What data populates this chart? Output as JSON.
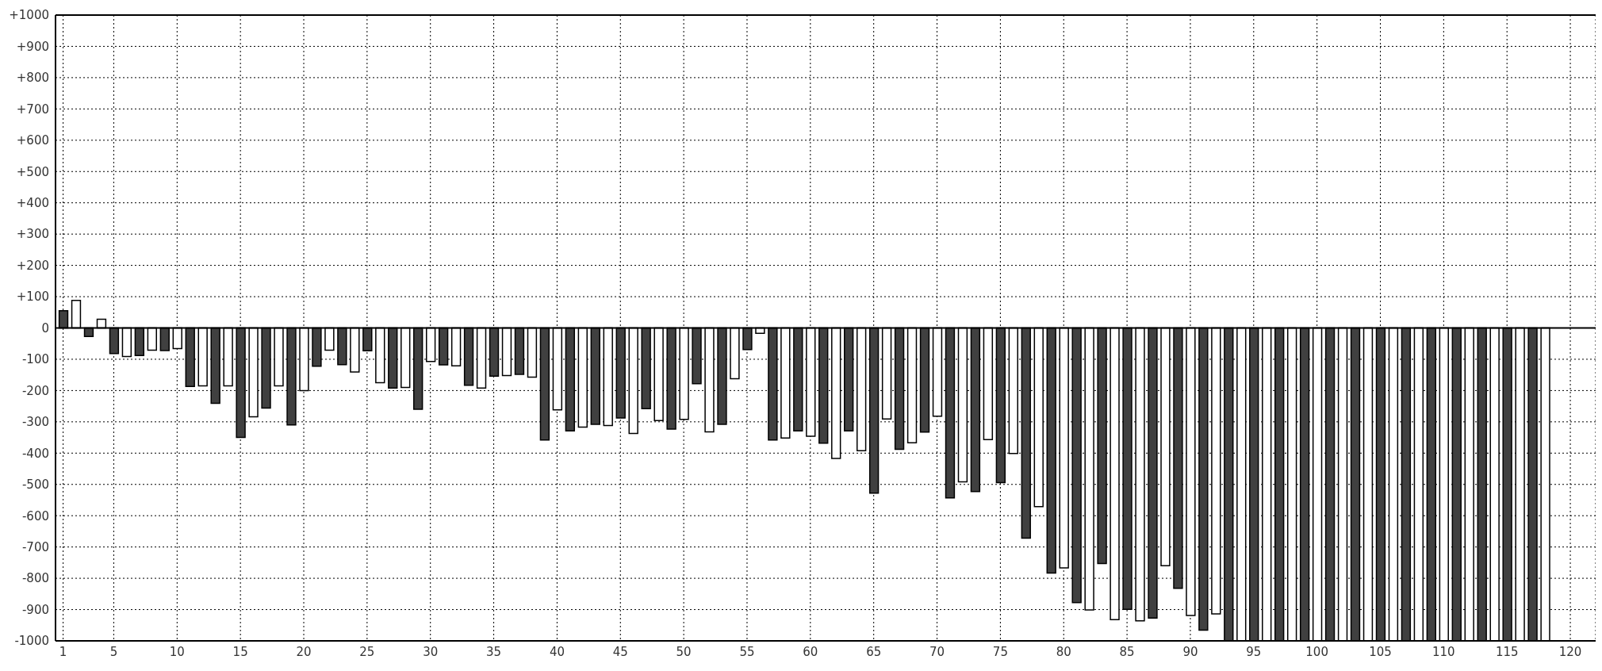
{
  "chart_data": {
    "type": "bar",
    "x": [
      1,
      2,
      3,
      4,
      5,
      6,
      7,
      8,
      9,
      10,
      11,
      12,
      13,
      14,
      15,
      16,
      17,
      18,
      19,
      20,
      21,
      22,
      23,
      24,
      25,
      26,
      27,
      28,
      29,
      30,
      31,
      32,
      33,
      34,
      35,
      36,
      37,
      38,
      39,
      40,
      41,
      42,
      43,
      44,
      45,
      46,
      47,
      48,
      49,
      50,
      51,
      52,
      53,
      54,
      55,
      56,
      57,
      58,
      59,
      60,
      61,
      62,
      63,
      64,
      65,
      66,
      67,
      68,
      69,
      70,
      71,
      72,
      73,
      74,
      75,
      76,
      77,
      78,
      79,
      80,
      81,
      82,
      83,
      84,
      85,
      86,
      87,
      88,
      89,
      90,
      91,
      92,
      93,
      94,
      95,
      96,
      97,
      98,
      99,
      100,
      101,
      102,
      103,
      104,
      105,
      106,
      107,
      108,
      109,
      110,
      111,
      112,
      113,
      114,
      115,
      116,
      117,
      118
    ],
    "values": [
      55,
      88,
      -27,
      28,
      -82,
      -91,
      -88,
      -71,
      -72,
      -66,
      -187,
      -185,
      -241,
      -185,
      -350,
      -284,
      -256,
      -185,
      -310,
      -200,
      -122,
      -71,
      -117,
      -141,
      -73,
      -175,
      -192,
      -190,
      -260,
      -107,
      -118,
      -121,
      -183,
      -192,
      -154,
      -152,
      -148,
      -157,
      -358,
      -262,
      -329,
      -317,
      -308,
      -312,
      -288,
      -337,
      -258,
      -296,
      -323,
      -292,
      -178,
      -332,
      -308,
      -162,
      -69,
      -17,
      -358,
      -352,
      -329,
      -346,
      -368,
      -417,
      -329,
      -392,
      -528,
      -291,
      -388,
      -367,
      -333,
      -282,
      -543,
      -492,
      -523,
      -357,
      -494,
      -401,
      -672,
      -571,
      -783,
      -767,
      -878,
      -901,
      -753,
      -932,
      -899,
      -936,
      -927,
      -760,
      -832,
      -919,
      -966,
      -914,
      -1000,
      -1000,
      -1000,
      -1000,
      -1000,
      -1000,
      -1000,
      -1000,
      -1000,
      -1000,
      -1000,
      -1000,
      -1000,
      -1000,
      -1000,
      -1000,
      -1000,
      -1000,
      -1000,
      -1000,
      -1000,
      -1000,
      -1000,
      -1000,
      -1000,
      -1000
    ],
    "colors": [
      "#404040",
      "#ffffff",
      "#404040",
      "#ffffff",
      "#404040",
      "#ffffff",
      "#404040",
      "#ffffff",
      "#404040",
      "#ffffff",
      "#404040",
      "#ffffff",
      "#404040",
      "#ffffff",
      "#404040",
      "#ffffff",
      "#404040",
      "#ffffff",
      "#404040",
      "#ffffff",
      "#404040",
      "#ffffff",
      "#404040",
      "#ffffff",
      "#404040",
      "#ffffff",
      "#404040",
      "#ffffff",
      "#404040",
      "#ffffff",
      "#404040",
      "#ffffff",
      "#404040",
      "#ffffff",
      "#404040",
      "#ffffff",
      "#404040",
      "#ffffff",
      "#404040",
      "#ffffff",
      "#404040",
      "#ffffff",
      "#404040",
      "#ffffff",
      "#404040",
      "#ffffff",
      "#404040",
      "#ffffff",
      "#404040",
      "#ffffff",
      "#404040",
      "#ffffff",
      "#404040",
      "#ffffff",
      "#404040",
      "#ffffff",
      "#404040",
      "#ffffff",
      "#404040",
      "#ffffff",
      "#404040",
      "#ffffff",
      "#404040",
      "#ffffff",
      "#404040",
      "#ffffff",
      "#404040",
      "#ffffff",
      "#404040",
      "#ffffff",
      "#404040",
      "#ffffff",
      "#404040",
      "#ffffff",
      "#404040",
      "#ffffff",
      "#404040",
      "#ffffff",
      "#404040",
      "#ffffff",
      "#404040",
      "#ffffff",
      "#404040",
      "#ffffff",
      "#404040",
      "#ffffff",
      "#404040",
      "#ffffff",
      "#404040",
      "#ffffff",
      "#404040",
      "#ffffff",
      "#404040",
      "#ffffff",
      "#404040",
      "#ffffff",
      "#404040",
      "#ffffff",
      "#404040",
      "#ffffff",
      "#404040",
      "#ffffff",
      "#404040",
      "#ffffff",
      "#404040",
      "#ffffff",
      "#404040",
      "#ffffff",
      "#404040",
      "#ffffff",
      "#404040",
      "#ffffff",
      "#404040",
      "#ffffff",
      "#404040",
      "#ffffff",
      "#404040",
      "#ffffff"
    ],
    "xlim": [
      0.4,
      122
    ],
    "xticks": [
      1,
      5,
      10,
      15,
      20,
      25,
      30,
      35,
      40,
      45,
      50,
      55,
      60,
      65,
      70,
      75,
      80,
      85,
      90,
      95,
      100,
      105,
      110,
      115,
      120
    ],
    "ylim": [
      -1000,
      1000
    ],
    "yticks": [
      -1000,
      -900,
      -800,
      -700,
      -600,
      -500,
      -400,
      -300,
      -200,
      -100,
      0,
      {
        "value": 100,
        "label": "+100"
      },
      {
        "value": 200,
        "label": "+200"
      },
      {
        "value": 300,
        "label": "+300"
      },
      {
        "value": 400,
        "label": "+400"
      },
      {
        "value": 500,
        "label": "+500"
      },
      {
        "value": 600,
        "label": "+600"
      },
      {
        "value": 700,
        "label": "+700"
      },
      {
        "value": 800,
        "label": "+800"
      },
      {
        "value": 900,
        "label": "+900"
      },
      {
        "value": 1000,
        "label": "+1000"
      }
    ],
    "ref_lines": [
      {
        "axis": "y",
        "value": 0,
        "color": "#000000"
      }
    ],
    "grid": true,
    "line_style": "dotted"
  }
}
